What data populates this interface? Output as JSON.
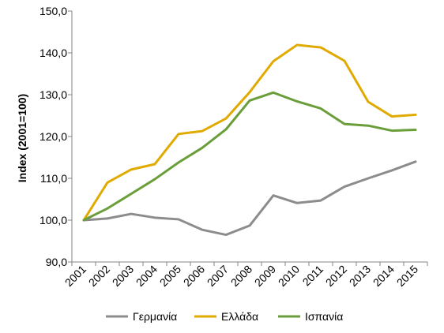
{
  "chart_data": {
    "type": "line",
    "title": "",
    "xlabel": "",
    "ylabel": "Index (2001=100)",
    "ylim": [
      90,
      150
    ],
    "yticks": [
      "90,0",
      "100,0",
      "110,0",
      "120,0",
      "130,0",
      "140,0",
      "150,0"
    ],
    "x": [
      "2001",
      "2002",
      "2003",
      "2004",
      "2005",
      "2006",
      "2007",
      "2008",
      "2009",
      "2010",
      "2011",
      "2012",
      "2013",
      "2014",
      "2015"
    ],
    "grid": false,
    "legend_position": "bottom",
    "series": [
      {
        "name": "Γερμανία",
        "color": "#8c8c8c",
        "values": [
          100.0,
          100.4,
          101.5,
          100.6,
          100.2,
          97.7,
          96.5,
          98.7,
          105.9,
          104.1,
          104.7,
          108.0,
          110.0,
          111.9,
          114.0
        ]
      },
      {
        "name": "Ελλάδα",
        "color": "#e0aa00",
        "values": [
          100.0,
          109.0,
          112.1,
          113.4,
          120.6,
          121.3,
          124.3,
          130.6,
          138.0,
          141.9,
          141.3,
          138.1,
          128.3,
          124.8,
          125.2
        ]
      },
      {
        "name": "Ισπανία",
        "color": "#6a9e3a",
        "values": [
          100.0,
          102.8,
          106.3,
          109.8,
          113.8,
          117.3,
          121.7,
          128.6,
          130.5,
          128.4,
          126.7,
          123.0,
          122.6,
          121.4,
          121.6
        ]
      }
    ]
  }
}
